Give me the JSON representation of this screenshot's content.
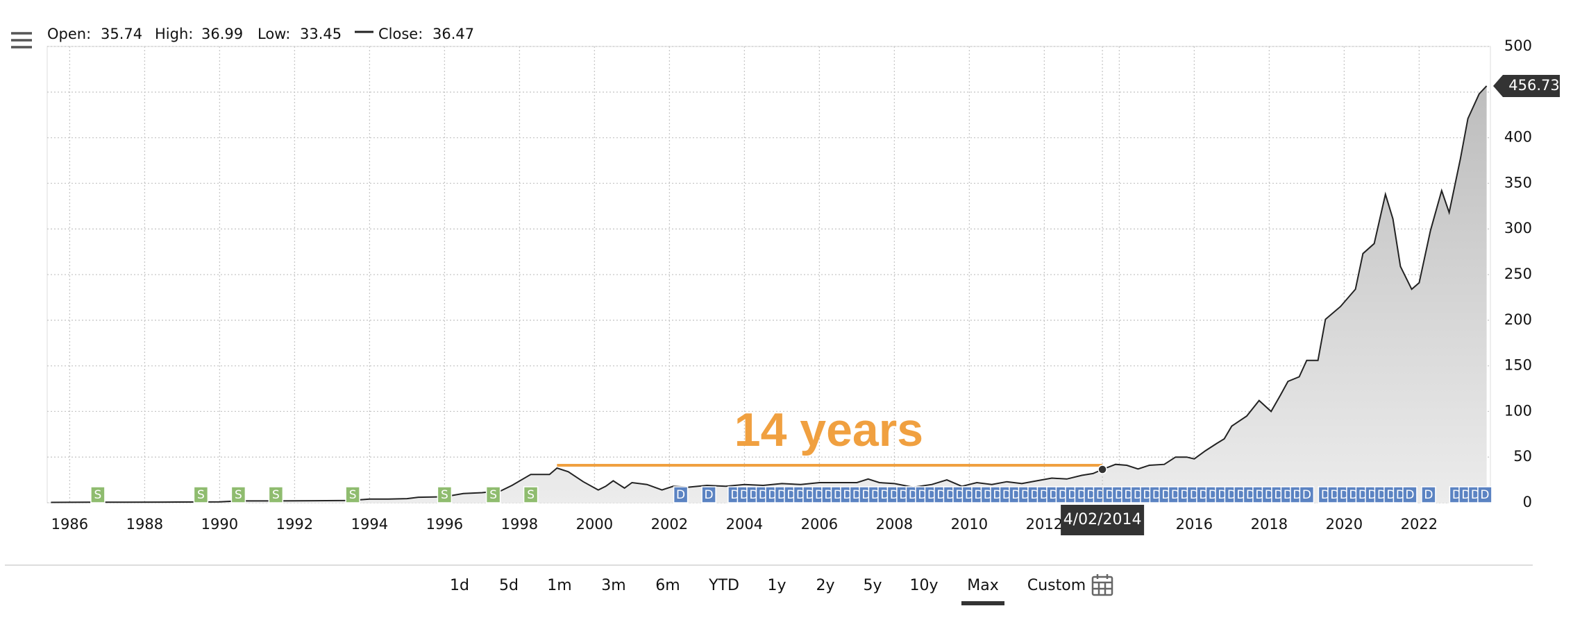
{
  "chart_data": {
    "type": "area",
    "x": [
      1985.5,
      1986.5,
      1987.5,
      1988.5,
      1989.5,
      1990.0,
      1990.5,
      1991.5,
      1992.5,
      1993.5,
      1994.0,
      1994.5,
      1995.0,
      1995.3,
      1996.0,
      1996.5,
      1997.0,
      1997.5,
      1997.8,
      1998.3,
      1998.8,
      1999.0,
      1999.3,
      1999.7,
      2000.1,
      2000.3,
      2000.5,
      2000.8,
      2001.0,
      2001.4,
      2001.8,
      2002.1,
      2002.5,
      2003.0,
      2003.5,
      2004.0,
      2004.5,
      2005.0,
      2005.5,
      2006.0,
      2006.5,
      2007.0,
      2007.3,
      2007.6,
      2008.0,
      2008.5,
      2009.0,
      2009.4,
      2009.8,
      2010.2,
      2010.6,
      2011.0,
      2011.4,
      2011.8,
      2012.2,
      2012.6,
      2013.0,
      2013.3,
      2013.55,
      2013.9,
      2014.2,
      2014.5,
      2014.8,
      2015.2,
      2015.5,
      2015.8,
      2016.0,
      2016.3,
      2016.6,
      2016.8,
      2017.0,
      2017.4,
      2017.73,
      2018.05,
      2018.3,
      2018.5,
      2018.8,
      2019.0,
      2019.3,
      2019.5,
      2019.9,
      2020.3,
      2020.5,
      2020.8,
      2021.1,
      2021.3,
      2021.5,
      2021.8,
      2022.0,
      2022.3,
      2022.6,
      2022.8,
      2023.1,
      2023.3,
      2023.6,
      2023.8
    ],
    "series": [
      {
        "name": "Close",
        "color": "#222222",
        "values": [
          0.4,
          0.5,
          0.6,
          0.7,
          0.8,
          1.0,
          2,
          2,
          2.2,
          2.5,
          4,
          4,
          4.5,
          6,
          6.5,
          10,
          11,
          13,
          19,
          31,
          31,
          38,
          34,
          23,
          14,
          18,
          24,
          16,
          22,
          20,
          14,
          18,
          17,
          19,
          18,
          20,
          19,
          21,
          20,
          22,
          22,
          22,
          26,
          22,
          21,
          17,
          20,
          25,
          18,
          22,
          20,
          23,
          21,
          24,
          27,
          26,
          30,
          32,
          36.47,
          42,
          41,
          37,
          41,
          42,
          50,
          50,
          48,
          57,
          65,
          70,
          84,
          95,
          112,
          100,
          118,
          133,
          138,
          156,
          156,
          201,
          215,
          234,
          273,
          284,
          338,
          311,
          259,
          234,
          241,
          298,
          342,
          318,
          377,
          421,
          448,
          456.73
        ]
      }
    ],
    "xlim": [
      1985.4,
      2023.9
    ],
    "ylim": [
      0,
      500
    ],
    "xticks": [
      1986,
      1988,
      1990,
      1992,
      1994,
      1996,
      1998,
      2000,
      2002,
      2004,
      2006,
      2008,
      2010,
      2012,
      2014,
      2016,
      2018,
      2020,
      2022
    ],
    "yticks": [
      0,
      50,
      100,
      150,
      200,
      250,
      300,
      350,
      400,
      450,
      500
    ],
    "grid": true,
    "annotations": [
      {
        "text": "14 years",
        "x": 2006.25,
        "y": 76,
        "line_from": 1999.0,
        "line_to": 2013.55,
        "line_y": 41,
        "color": "#f0a040"
      }
    ],
    "hover": {
      "x": 2013.55,
      "y": 36.47,
      "label": "4/02/2014"
    },
    "flags": [
      {
        "label": "S",
        "color": "#8fbc6f",
        "x": [
          1986.75,
          1989.5,
          1990.5,
          1991.5,
          1993.55,
          1996.0,
          1997.3,
          1998.3
        ]
      },
      {
        "label": "D",
        "color": "#5b83c2",
        "x": [
          2002.3,
          2003.05,
          2003.75,
          2004.0,
          2004.25,
          2004.5,
          2004.75,
          2005.0,
          2005.25,
          2005.5,
          2005.75,
          2006.0,
          2006.25,
          2006.5,
          2006.75,
          2007.0,
          2007.25,
          2007.5,
          2007.75,
          2008.0,
          2008.25,
          2008.5,
          2008.75,
          2009.0,
          2009.25,
          2009.5,
          2009.75,
          2010.0,
          2010.25,
          2010.5,
          2010.75,
          2011.0,
          2011.25,
          2011.5,
          2011.75,
          2012.0,
          2012.25,
          2012.5,
          2012.75,
          2013.0,
          2013.25,
          2013.5,
          2013.75,
          2014.0,
          2014.25,
          2014.5,
          2014.75,
          2015.0,
          2015.25,
          2015.5,
          2015.75,
          2016.0,
          2016.25,
          2016.5,
          2016.75,
          2017.0,
          2017.25,
          2017.5,
          2017.75,
          2018.0,
          2018.25,
          2018.5,
          2018.75,
          2019.0,
          2019.5,
          2019.75,
          2020.0,
          2020.25,
          2020.5,
          2020.75,
          2021.0,
          2021.25,
          2021.5,
          2021.75,
          2022.25,
          2023.0,
          2023.25,
          2023.5,
          2023.75
        ]
      }
    ]
  },
  "ohlc": [
    {
      "label": "Open:",
      "value": 35.74
    },
    {
      "label": "High:",
      "value": 36.99
    },
    {
      "label": "Low:",
      "value": 33.45
    },
    {
      "label": "Close:",
      "value": 36.47
    }
  ],
  "range_buttons": {
    "items": [
      "1d",
      "5d",
      "1m",
      "3m",
      "6m",
      "YTD",
      "1y",
      "2y",
      "5y",
      "10y",
      "Max",
      "Custom"
    ],
    "selected": "Max"
  }
}
